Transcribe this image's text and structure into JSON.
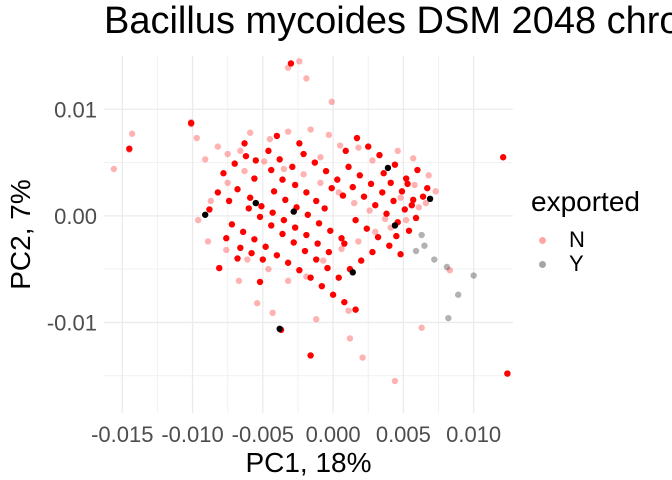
{
  "chart_data": {
    "type": "scatter",
    "title": "Bacillus mycoides DSM 2048 chro",
    "xlabel": "PC1, 18%",
    "ylabel": "PC2, 7%",
    "xlim": [
      -0.0163,
      0.0128
    ],
    "ylim": [
      -0.0185,
      0.015
    ],
    "x_ticks": [
      -0.015,
      -0.01,
      -0.005,
      0.0,
      0.005,
      0.01
    ],
    "x_tick_labels": [
      "-0.015",
      "-0.010",
      "-0.005",
      "0.000",
      "0.005",
      "0.010"
    ],
    "y_ticks": [
      0.01,
      0.0,
      -0.01
    ],
    "y_tick_labels": [
      "0.01",
      "0.00",
      "-0.01"
    ],
    "grid": true,
    "legend": {
      "title": "exported",
      "position": "right",
      "entries": [
        {
          "label": "N",
          "color": "#ff0000"
        },
        {
          "label": "Y",
          "color": "#000000"
        }
      ]
    },
    "series": [
      {
        "name": "N",
        "color": "#ff0000",
        "alpha": 0.3,
        "points": [
          [
            -0.0145,
            0.0062
          ],
          [
            -0.0143,
            0.0077
          ],
          [
            -0.0101,
            0.0086
          ],
          [
            -0.0101,
            0.0088
          ],
          [
            -0.0097,
            0.0073
          ],
          [
            -0.0091,
            0.0053
          ],
          [
            -0.0082,
            0.0065
          ],
          [
            -0.0075,
            0.0058
          ],
          [
            -0.0066,
            0.0061
          ],
          [
            -0.0059,
            0.0078
          ],
          [
            -0.0045,
            0.0072
          ],
          [
            -0.0032,
            0.0079
          ],
          [
            -0.0016,
            0.0081
          ],
          [
            -0.0003,
            0.0076
          ],
          [
            -0.0009,
            0.0055
          ],
          [
            0.0005,
            0.0066
          ],
          [
            0.0018,
            0.0064
          ],
          [
            0.0028,
            0.0052
          ],
          [
            0.0046,
            0.0061
          ],
          [
            0.0057,
            0.0054
          ],
          [
            0.0068,
            0.0038
          ],
          [
            0.0073,
            0.0023
          ],
          [
            0.0061,
            0.0008
          ],
          [
            0.0052,
            -0.0004
          ],
          [
            0.0041,
            -0.0011
          ],
          [
            0.003,
            -0.0015
          ],
          [
            0.0018,
            -0.0024
          ],
          [
            0.0006,
            -0.0031
          ],
          [
            -0.0007,
            -0.0042
          ],
          [
            -0.0019,
            -0.0057
          ],
          [
            -0.0032,
            -0.0061
          ],
          [
            -0.0046,
            -0.005
          ],
          [
            -0.0061,
            -0.0041
          ],
          [
            -0.0076,
            -0.0032
          ],
          [
            -0.0089,
            -0.0024
          ],
          [
            -0.0096,
            -0.0004
          ],
          [
            -0.0087,
            0.0014
          ],
          [
            -0.0075,
            0.0031
          ],
          [
            -0.0063,
            0.0042
          ],
          [
            -0.0049,
            0.0051
          ],
          [
            -0.0035,
            0.0044
          ],
          [
            -0.0021,
            0.0039
          ],
          [
            -0.0009,
            0.0031
          ],
          [
            0.0004,
            0.0022
          ],
          [
            0.0015,
            0.0012
          ],
          [
            0.0026,
            0.0005
          ],
          [
            0.0037,
            -0.0003
          ],
          [
            0.0048,
            0.0017
          ],
          [
            0.0058,
            0.0029
          ],
          [
            0.0066,
            0.0012
          ],
          [
            -0.0024,
            0.0145
          ],
          [
            -0.0032,
            0.0139
          ],
          [
            -0.0019,
            0.0129
          ],
          [
            -0.0001,
            0.0107
          ],
          [
            -0.0156,
            0.0044
          ],
          [
            0.0012,
            -0.0115
          ],
          [
            0.0021,
            -0.0133
          ],
          [
            0.0044,
            -0.0155
          ],
          [
            0.0063,
            -0.0105
          ],
          [
            0.0083,
            -0.0051
          ],
          [
            -0.0043,
            -0.0091
          ],
          [
            -0.0054,
            -0.0082
          ],
          [
            -0.0067,
            -0.0061
          ],
          [
            -0.0012,
            -0.0097
          ],
          [
            0.0011,
            -0.0089
          ]
        ]
      },
      {
        "name": "N",
        "color": "#ff0000",
        "alpha": 1.0,
        "points": [
          [
            -0.0145,
            0.0063
          ],
          [
            -0.0101,
            0.0087
          ],
          [
            -0.003,
            0.0143
          ],
          [
            0.0121,
            0.0055
          ],
          [
            0.0124,
            -0.0148
          ],
          [
            -0.0037,
            -0.0107
          ],
          [
            -0.0016,
            -0.0131
          ],
          [
            -0.0068,
            -0.004
          ],
          [
            -0.0052,
            -0.0062
          ],
          [
            -0.0081,
            -0.0049
          ],
          [
            -0.0063,
            0.0068
          ],
          [
            -0.0055,
            0.0052
          ],
          [
            -0.0044,
            0.0043
          ],
          [
            -0.0036,
            0.0034
          ],
          [
            -0.0027,
            0.0029
          ],
          [
            -0.0019,
            0.0022
          ],
          [
            -0.0012,
            0.0014
          ],
          [
            -0.0006,
            0.0007
          ],
          [
            -0.0068,
            0.0025
          ],
          [
            -0.0059,
            0.0017
          ],
          [
            -0.0051,
            0.0009
          ],
          [
            -0.0043,
            0.0003
          ],
          [
            -0.0035,
            -0.0004
          ],
          [
            -0.0027,
            -0.0011
          ],
          [
            -0.0019,
            -0.0018
          ],
          [
            -0.0011,
            -0.0026
          ],
          [
            -0.0003,
            -0.0034
          ],
          [
            -0.0072,
            -0.0008
          ],
          [
            -0.0064,
            -0.0015
          ],
          [
            -0.0056,
            -0.0022
          ],
          [
            -0.0048,
            -0.0029
          ],
          [
            -0.004,
            -0.0037
          ],
          [
            -0.0032,
            -0.0044
          ],
          [
            -0.0024,
            -0.0051
          ],
          [
            -0.0016,
            -0.0058
          ],
          [
            -0.0008,
            -0.0066
          ],
          [
            0.0,
            -0.0074
          ],
          [
            0.0008,
            -0.0081
          ],
          [
            0.0016,
            -0.0088
          ],
          [
            -0.0078,
            0.004
          ],
          [
            -0.007,
            0.0049
          ],
          [
            -0.0062,
            0.0056
          ],
          [
            -0.0046,
            0.0061
          ],
          [
            -0.0038,
            0.0053
          ],
          [
            -0.0029,
            0.0046
          ],
          [
            -0.0021,
            0.0058
          ],
          [
            -0.0013,
            0.005
          ],
          [
            -0.0005,
            0.0042
          ],
          [
            0.0003,
            0.0034
          ],
          [
            0.0011,
            0.0046
          ],
          [
            0.0019,
            0.0038
          ],
          [
            0.0027,
            0.003
          ],
          [
            0.0035,
            0.0022
          ],
          [
            0.0043,
            0.0014
          ],
          [
            0.0051,
            0.0006
          ],
          [
            0.0059,
            -0.0002
          ],
          [
            0.0067,
            0.0026
          ],
          [
            0.0022,
            0.0018
          ],
          [
            0.003,
            0.001
          ],
          [
            0.0038,
            0.0002
          ],
          [
            0.0046,
            -0.0006
          ],
          [
            0.0054,
            -0.0014
          ],
          [
            0.0016,
            -0.0004
          ],
          [
            0.0024,
            -0.0012
          ],
          [
            0.0032,
            -0.002
          ],
          [
            0.004,
            -0.0028
          ],
          [
            0.0048,
            -0.0036
          ],
          [
            0.0008,
            -0.0026
          ],
          [
            0.0036,
            0.004
          ],
          [
            0.0044,
            0.0048
          ],
          [
            0.0052,
            0.0035
          ],
          [
            0.006,
            0.0043
          ],
          [
            0.0064,
            0.0018
          ],
          [
            0.0056,
            0.001
          ],
          [
            0.0028,
            -0.0034
          ],
          [
            0.002,
            -0.0042
          ],
          [
            0.0012,
            -0.005
          ],
          [
            0.0004,
            -0.0058
          ],
          [
            -0.0004,
            -0.0049
          ],
          [
            -0.0012,
            -0.0041
          ],
          [
            -0.002,
            -0.0033
          ],
          [
            -0.0028,
            -0.0025
          ],
          [
            -0.0036,
            -0.0017
          ],
          [
            -0.0044,
            -0.0009
          ],
          [
            -0.0052,
            -0.0001
          ],
          [
            -0.006,
            0.0007
          ],
          [
            -0.0074,
            0.0014
          ],
          [
            -0.0082,
            0.0022
          ],
          [
            -0.0088,
            0.0006
          ],
          [
            -0.0076,
            -0.0021
          ],
          [
            -0.0066,
            -0.003
          ],
          [
            -0.0058,
            -0.0035
          ],
          [
            -0.005,
            -0.0041
          ],
          [
            -0.0042,
            0.0023
          ],
          [
            -0.0034,
            0.0015
          ],
          [
            -0.0026,
            0.0008
          ],
          [
            -0.0018,
            0.0001
          ],
          [
            -0.001,
            -0.0007
          ],
          [
            -0.0002,
            -0.0014
          ],
          [
            0.0006,
            -0.0021
          ],
          [
            0.0014,
            0.0027
          ],
          [
            0.0007,
            0.0019
          ],
          [
            -0.0001,
            0.0026
          ],
          [
            0.0041,
            0.0031
          ],
          [
            0.0049,
            0.0023
          ],
          [
            0.0057,
            0.0015
          ],
          [
            0.0045,
            -0.0019
          ],
          [
            0.0053,
            0.003
          ],
          [
            0.0033,
            0.0057
          ],
          [
            0.0025,
            0.0065
          ],
          [
            0.0017,
            0.0073
          ],
          [
            0.0009,
            0.0061
          ],
          [
            -0.0024,
            0.0068
          ],
          [
            -0.004,
            0.0075
          ],
          [
            -0.0056,
            0.0035
          ]
        ]
      },
      {
        "name": "Y",
        "color": "#000000",
        "alpha": 0.3,
        "points": [
          [
            0.0065,
            -0.0028
          ],
          [
            0.0072,
            -0.0041
          ],
          [
            0.0081,
            -0.0048
          ],
          [
            0.0089,
            -0.0074
          ],
          [
            0.01,
            -0.0056
          ],
          [
            0.0082,
            -0.0096
          ],
          [
            0.0059,
            -0.0033
          ],
          [
            0.0063,
            -0.0018
          ]
        ]
      },
      {
        "name": "Y",
        "color": "#000000",
        "alpha": 1.0,
        "points": [
          [
            -0.0091,
            0.0001
          ],
          [
            -0.0055,
            0.0012
          ],
          [
            -0.0038,
            -0.0106
          ],
          [
            0.0014,
            -0.0053
          ],
          [
            0.0039,
            0.0045
          ],
          [
            0.0069,
            0.0016
          ],
          [
            -0.0028,
            0.0004
          ],
          [
            0.0044,
            -0.0009
          ]
        ]
      }
    ]
  }
}
